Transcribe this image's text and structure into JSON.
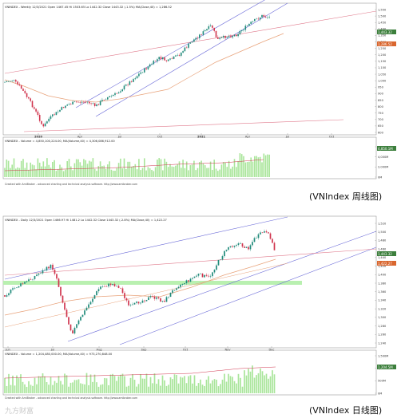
{
  "charts": [
    {
      "id": "weekly",
      "header": "VNINDEX - Weekly 12/3/2021 Open 1467.45 Hi 1503.65 Lo 1442.32 Close 1443.32 (-1.5%)  MA(Close,40) = 1,286.52",
      "volume_header": "VNINDEX - Volume = 4,850,100,224.00, MA(Volume,40) = 4,306,086,912.00",
      "footer": "Created with AmiBroker - advanced charting and technical analysis software. http://www.amibroker.com",
      "caption": "(VNIndex 周线图)",
      "last_price_label": "1,443.32",
      "ma_label": "1,286.52",
      "volume_last_label": "4,850.1M",
      "price_axis": [
        "1,550",
        "1,500",
        "1,450",
        "1,400",
        "1,350",
        "1,300",
        "1,250",
        "1,200",
        "1,150",
        "1,100",
        "1,050",
        "1,000",
        "950",
        "900",
        "850",
        "800",
        "750",
        "700",
        "650",
        "600"
      ],
      "volume_axis": [
        "6,000M",
        "4,000M",
        "2,000M",
        "0M"
      ],
      "time_labels": [
        "2020",
        "Apr",
        "Jul",
        "Oct",
        "2021",
        "Apr",
        "Jul",
        "Oct"
      ]
    },
    {
      "id": "daily",
      "header": "VNINDEX - Daily 12/3/2021 Open 1466.97 Hi 1481.2 Lo 1442.32 Close 1443.32 (-2.8%)  MA(Close,40) = 1,422.27",
      "volume_header": "VNINDEX - Volume = 1,204,480,000.00, MA(Volume,40) = 973,270,848.00",
      "footer": "Created with AmiBroker - advanced charting and technical analysis software. http://www.amibroker.com",
      "caption": "(VNIndex 日线图)",
      "last_price_label": "1,443.32",
      "ma_label": "1,422.27",
      "volume_last_label": "1,204.5M",
      "price_axis": [
        "1,520",
        "1,500",
        "1,480",
        "1,460",
        "1,440",
        "1,420",
        "1,400",
        "1,380",
        "1,360",
        "1,340",
        "1,320",
        "1,300",
        "1,280",
        "1,260",
        "1,240"
      ],
      "volume_axis": [
        "1,500M",
        "1,000M",
        "500M",
        "0M"
      ],
      "time_labels": [
        "Jun",
        "Jul",
        "Aug",
        "Sep",
        "Oct",
        "Nov",
        "Dec"
      ]
    }
  ],
  "watermark": "九方财富",
  "colors": {
    "up": "#1f8a7a",
    "down": "#d0344d",
    "ma": "#e8a27a",
    "channel": "#6b6bd8",
    "resistance": "#e07a8c",
    "support_zone": "#b9f0b0",
    "volume": "#a9e59a",
    "panel_border": "#9a9a9a",
    "last_badge": "#3c7f3c",
    "ma_badge": "#d9662e"
  }
}
